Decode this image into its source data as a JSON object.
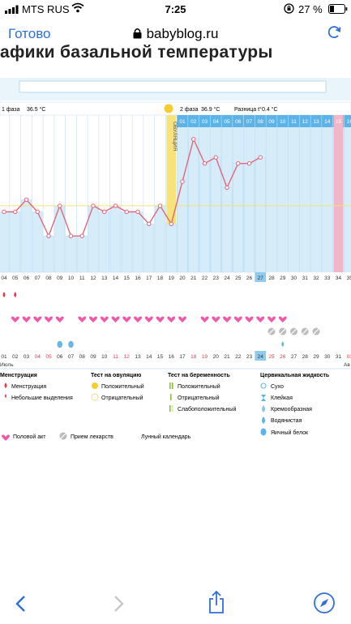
{
  "status": {
    "carrier": "MTS RUS",
    "time": "7:25",
    "battery": "27 %"
  },
  "nav": {
    "done_label": "Готово",
    "url": "babyblog.ru"
  },
  "page": {
    "heading": "афики базальной температуры"
  },
  "phase1": {
    "label": "1 фаза",
    "temp": "36.5 °C"
  },
  "phase2": {
    "label": "2 фаза",
    "temp": "36.9 °C",
    "diff_label": "Разница t°",
    "diff": "0.4 °C"
  },
  "ovulation_label": "ОВУЛЯЦИЯ",
  "month_label": "Июль",
  "next_month_label": "Ав",
  "chart_data": {
    "type": "line",
    "cycle_days": [
      4,
      5,
      6,
      7,
      8,
      9,
      10,
      11,
      12,
      13,
      14,
      15,
      16,
      17,
      18,
      19,
      20,
      21,
      22,
      23,
      24,
      25,
      26,
      27,
      28,
      29,
      30,
      31,
      32,
      33,
      34,
      35
    ],
    "temperature_values": [
      36.5,
      36.5,
      36.6,
      36.5,
      36.3,
      36.55,
      36.3,
      36.3,
      36.55,
      36.5,
      36.55,
      36.5,
      36.5,
      36.4,
      36.55,
      36.4,
      36.75,
      37.1,
      36.9,
      36.95,
      36.7,
      36.9,
      36.9,
      36.95
    ],
    "coverline": 36.55,
    "ylim": [
      36.0,
      37.3
    ],
    "top_day_labels": [
      "01",
      "02",
      "03",
      "04",
      "05",
      "06",
      "07",
      "08",
      "09",
      "10",
      "11",
      "12",
      "13",
      "14",
      "15",
      "16"
    ],
    "bottom_dates": [
      "01",
      "02",
      "03",
      "04",
      "05",
      "06",
      "07",
      "08",
      "09",
      "10",
      "11",
      "12",
      "13",
      "14",
      "15",
      "16",
      "17",
      "18",
      "19",
      "20",
      "21",
      "22",
      "23",
      "24",
      "25",
      "26",
      "27",
      "28",
      "29",
      "30",
      "31",
      "01"
    ],
    "red_dates": [
      "04",
      "05",
      "11",
      "12",
      "18",
      "19",
      "25",
      "26",
      "01"
    ],
    "ovulation_day": 19,
    "highlight_day": 34,
    "today_cycle_day": 27,
    "today_date": "24"
  },
  "markers": {
    "menstruation_days": [
      4,
      5
    ],
    "intercourse_days": [
      5,
      6,
      7,
      8,
      9,
      11,
      12,
      13,
      14,
      15,
      16,
      17,
      18,
      19,
      20,
      22,
      23,
      24,
      25,
      26,
      27,
      28,
      29
    ],
    "medication_days": [
      28,
      29,
      30,
      31,
      32
    ],
    "lunar_day": 6,
    "watery_mucus_days": [
      9,
      10
    ],
    "egg_white_days": [
      29
    ]
  },
  "legend": {
    "menstruation": {
      "title": "Менструация",
      "items": [
        "Менструация",
        "Небольшие выделения"
      ]
    },
    "ovulation_test": {
      "title": "Тест на овуляцию",
      "items": [
        "Положительный",
        "Отрицательный"
      ]
    },
    "pregnancy_test": {
      "title": "Тест на беременность",
      "items": [
        "Положительный",
        "Отрицательный",
        "Слабоположительный"
      ]
    },
    "mucus": {
      "title": "Цервикальная жидкость",
      "items": [
        "Сухо",
        "Клейкая",
        "Кремообразная",
        "Водянистая",
        "Яичный белок"
      ]
    },
    "other": {
      "intercourse": "Половой акт",
      "medication": "Прием лекарств",
      "lunar": "Лунный календарь"
    }
  },
  "colors": {
    "accent": "#2f6fd6",
    "grid_blue": "#5bb3e8",
    "bar_fill": "#d6ecf9",
    "ovulation": "#f7e37a",
    "highlight": "#f3b6c9",
    "line": "#e2667a",
    "heart": "#ef5aa8",
    "menstruation": "#e23c4a"
  }
}
